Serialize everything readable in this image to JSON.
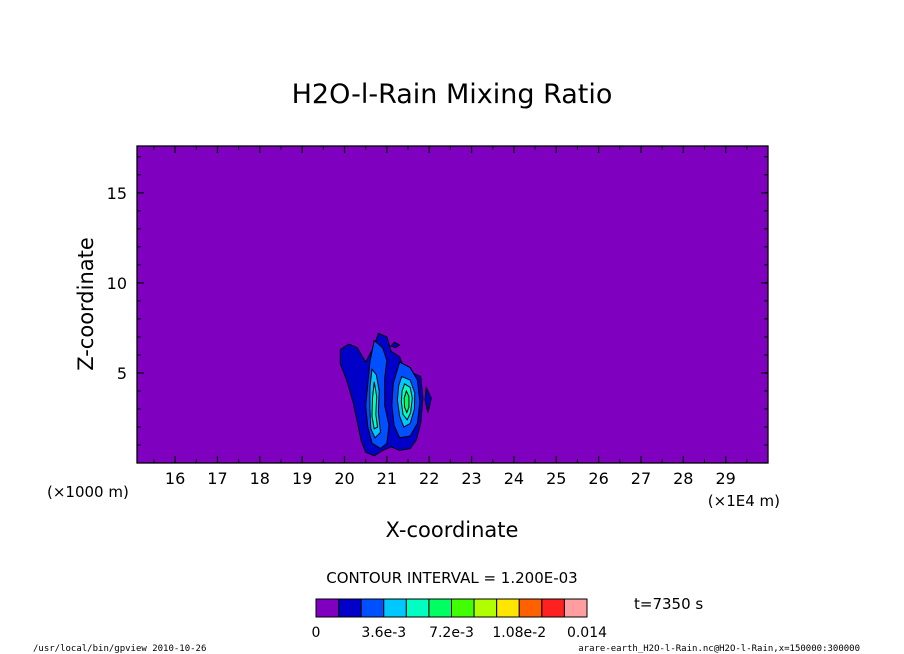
{
  "chart_data": {
    "type": "heatmap",
    "title": "H2O-l-Rain Mixing Ratio",
    "xlabel": "X-coordinate",
    "ylabel": "Z-coordinate",
    "x_unit_left": "(×1000 m)",
    "x_unit_right": "(×1E4 m)",
    "xlim": [
      15.1,
      30.0
    ],
    "ylim": [
      0.0,
      17.6
    ],
    "x_ticks": [
      16,
      17,
      18,
      19,
      20,
      21,
      22,
      23,
      24,
      25,
      26,
      27,
      28,
      29
    ],
    "y_ticks": [
      5,
      10,
      15
    ],
    "contour_interval_text": "CONTOUR INTERVAL = 1.200E-03",
    "time_text": "t=7350 s",
    "colorbar": {
      "colors": [
        "#8000c0",
        "#0000c8",
        "#0050ff",
        "#00c8ff",
        "#00ffc0",
        "#00ff60",
        "#40ff00",
        "#b0ff00",
        "#ffe600",
        "#ff6000",
        "#ff2020",
        "#ff9ea0"
      ],
      "tick_labels": [
        "0",
        "3.6e-3",
        "7.2e-3",
        "1.08e-2",
        "0.014"
      ]
    },
    "field_shapes": [
      {
        "level": 1,
        "points": [
          [
            19.9,
            6.3
          ],
          [
            20.1,
            6.6
          ],
          [
            20.3,
            6.4
          ],
          [
            20.5,
            5.6
          ],
          [
            20.7,
            6.5
          ],
          [
            20.8,
            7.2
          ],
          [
            21.0,
            7.0
          ],
          [
            21.1,
            6.2
          ],
          [
            21.3,
            5.9
          ],
          [
            21.4,
            5.3
          ],
          [
            21.6,
            5.0
          ],
          [
            21.8,
            4.8
          ],
          [
            21.85,
            3.6
          ],
          [
            21.8,
            2.2
          ],
          [
            21.7,
            1.3
          ],
          [
            21.55,
            0.8
          ],
          [
            21.3,
            0.7
          ],
          [
            21.1,
            0.9
          ],
          [
            20.9,
            0.7
          ],
          [
            20.7,
            0.4
          ],
          [
            20.5,
            0.6
          ],
          [
            20.4,
            1.2
          ],
          [
            20.3,
            2.3
          ],
          [
            20.2,
            3.4
          ],
          [
            20.05,
            4.6
          ],
          [
            19.9,
            5.5
          ]
        ]
      },
      {
        "level": 1,
        "points": [
          [
            21.18,
            6.7
          ],
          [
            21.3,
            6.55
          ],
          [
            21.2,
            6.4
          ],
          [
            21.1,
            6.5
          ]
        ]
      },
      {
        "level": 1,
        "points": [
          [
            21.93,
            4.2
          ],
          [
            22.05,
            3.6
          ],
          [
            21.97,
            2.8
          ],
          [
            21.9,
            3.5
          ]
        ]
      },
      {
        "level": 2,
        "points": [
          [
            20.7,
            6.8
          ],
          [
            20.9,
            6.4
          ],
          [
            21.0,
            5.7
          ],
          [
            20.95,
            4.7
          ],
          [
            20.95,
            3.2
          ],
          [
            21.05,
            2.1
          ],
          [
            21.0,
            1.1
          ],
          [
            20.85,
            0.8
          ],
          [
            20.65,
            1.1
          ],
          [
            20.55,
            2.0
          ],
          [
            20.5,
            3.2
          ],
          [
            20.55,
            4.4
          ],
          [
            20.6,
            5.6
          ]
        ]
      },
      {
        "level": 2,
        "points": [
          [
            21.3,
            5.6
          ],
          [
            21.55,
            5.3
          ],
          [
            21.72,
            4.6
          ],
          [
            21.78,
            3.4
          ],
          [
            21.72,
            2.2
          ],
          [
            21.55,
            1.5
          ],
          [
            21.3,
            1.4
          ],
          [
            21.17,
            2.1
          ],
          [
            21.12,
            3.2
          ],
          [
            21.15,
            4.4
          ]
        ]
      },
      {
        "level": 3,
        "points": [
          [
            20.65,
            5.2
          ],
          [
            20.75,
            4.9
          ],
          [
            20.82,
            4.0
          ],
          [
            20.8,
            2.8
          ],
          [
            20.85,
            1.7
          ],
          [
            20.72,
            1.4
          ],
          [
            20.62,
            1.9
          ],
          [
            20.6,
            3.0
          ],
          [
            20.6,
            4.2
          ]
        ]
      },
      {
        "level": 3,
        "points": [
          [
            21.35,
            4.8
          ],
          [
            21.55,
            4.6
          ],
          [
            21.66,
            3.9
          ],
          [
            21.65,
            3.0
          ],
          [
            21.55,
            2.2
          ],
          [
            21.4,
            2.0
          ],
          [
            21.3,
            2.6
          ],
          [
            21.25,
            3.5
          ],
          [
            21.28,
            4.3
          ]
        ]
      },
      {
        "level": 4,
        "points": [
          [
            20.7,
            4.5
          ],
          [
            20.76,
            3.7
          ],
          [
            20.74,
            2.7
          ],
          [
            20.78,
            2.0
          ],
          [
            20.7,
            1.9
          ],
          [
            20.65,
            2.6
          ],
          [
            20.66,
            3.6
          ]
        ]
      },
      {
        "level": 4,
        "points": [
          [
            21.42,
            4.4
          ],
          [
            21.55,
            4.2
          ],
          [
            21.6,
            3.6
          ],
          [
            21.56,
            2.8
          ],
          [
            21.48,
            2.4
          ],
          [
            21.38,
            2.7
          ],
          [
            21.34,
            3.4
          ],
          [
            21.36,
            4.0
          ]
        ]
      },
      {
        "level": 5,
        "points": [
          [
            21.46,
            4.0
          ],
          [
            21.52,
            3.7
          ],
          [
            21.52,
            3.1
          ],
          [
            21.47,
            2.8
          ],
          [
            21.42,
            3.1
          ],
          [
            21.41,
            3.6
          ]
        ]
      }
    ],
    "footer_left": "/usr/local/bin/gpview  2010-10-26",
    "footer_right": "arare-earth_H2O-l-Rain.nc@H2O-l-Rain,x=150000:300000"
  }
}
